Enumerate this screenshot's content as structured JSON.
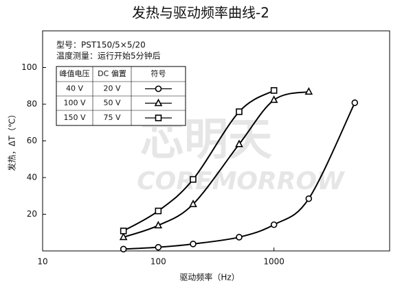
{
  "chart_data": {
    "type": "line",
    "title": "发热与驱动频率曲线-2",
    "x_label": "驱动频率（Hz）",
    "y_label": "发热，ΔT（℃）",
    "notes": [
      "型号：PST150/5×5/20",
      "温度测量：运行开始5分钟后"
    ],
    "legend_headers": [
      "峰值电压",
      "DC 偏置",
      "符号"
    ],
    "watermark": [
      "芯明天",
      "COREMORROW"
    ],
    "x_log": true,
    "xlim": [
      10,
      10000
    ],
    "xticks": [
      10,
      100,
      1000
    ],
    "ylim": [
      0,
      120
    ],
    "yticks": [
      20,
      40,
      60,
      80,
      100
    ],
    "color": "#000000",
    "series": [
      {
        "name": "40 V",
        "bias": "20 V",
        "marker": "circle",
        "x": [
          50,
          100,
          200,
          500,
          1000,
          2000,
          5000
        ],
        "values": [
          1,
          2,
          3.8,
          7.5,
          14.3,
          28.5,
          80.8
        ]
      },
      {
        "name": "100 V",
        "bias": "50 V",
        "marker": "triangle",
        "x": [
          50,
          100,
          200,
          500,
          1000,
          2000
        ],
        "values": [
          7.5,
          13.9,
          25.5,
          58.2,
          82.3,
          86.8
        ]
      },
      {
        "name": "150 V",
        "bias": "75 V",
        "marker": "square",
        "x": [
          50,
          100,
          200,
          500,
          1000
        ],
        "values": [
          10.9,
          21.8,
          39,
          75.9,
          87.5
        ]
      }
    ]
  }
}
